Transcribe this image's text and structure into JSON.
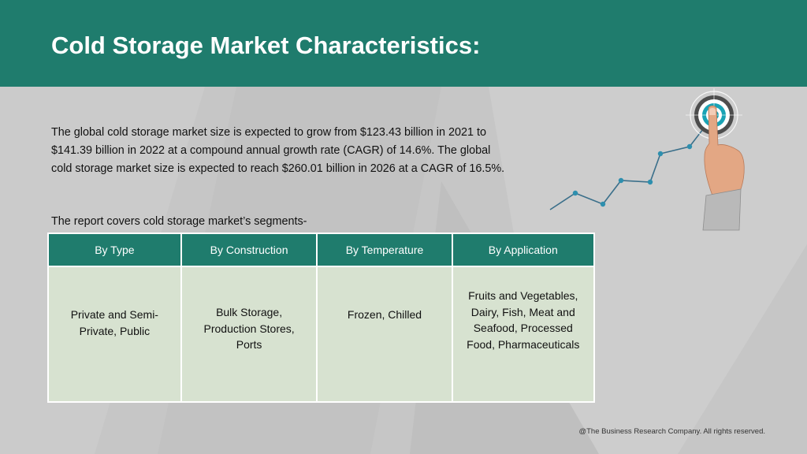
{
  "header": {
    "title": "Cold Storage Market Characteristics:"
  },
  "intro": "The global cold storage market size is expected to grow from $123.43 billion in 2021 to $141.39 billion in 2022 at a compound annual growth rate (CAGR) of 14.6%. The global cold storage market size is expected to reach $260.01 billion in 2026 at a CAGR of 16.5%.",
  "segments_label": "The report covers cold storage market’s segments-",
  "table": {
    "headers": [
      "By Type",
      "By Construction",
      "By Temperature",
      "By Application"
    ],
    "cells": [
      "Private and Semi-Private, Public",
      "Bulk Storage, Production Stores, Ports",
      "Frozen, Chilled",
      "Fruits and Vegetables, Dairy, Fish, Meat and Seafood, Processed Food, Pharmaceuticals"
    ]
  },
  "footer": "@The Business Research Company. All rights reserved.",
  "colors": {
    "header_bg": "#1f7c6d",
    "cell_bg": "#d7e2d0",
    "slide_bg": "#c6c6c6",
    "target_accent": "#1aa3b5"
  },
  "icons": {
    "graphic": "growth-chart-target-finger-icon"
  }
}
